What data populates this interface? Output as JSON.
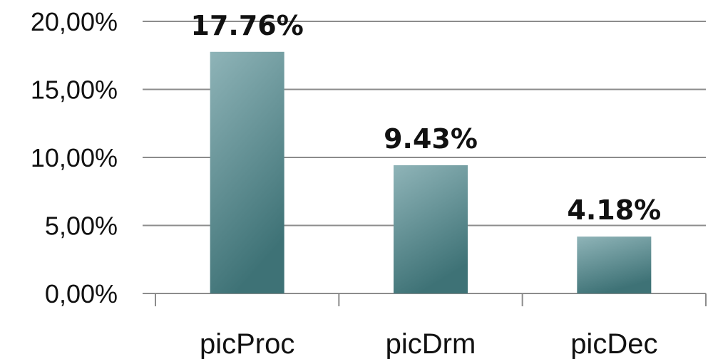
{
  "chart_data": {
    "type": "bar",
    "categories": [
      "picProc",
      "picDrm",
      "picDec"
    ],
    "values": [
      17.76,
      9.43,
      4.18
    ],
    "data_labels": [
      "17.76%",
      "9.43%",
      "4.18%"
    ],
    "y_ticks": [
      0,
      5,
      10,
      15,
      20
    ],
    "y_tick_labels": [
      "0,00%",
      "5,00%",
      "10,00%",
      "15,00%",
      "20,00%"
    ],
    "ylim": [
      0,
      20
    ],
    "grid": true,
    "legend": "none",
    "colors": {
      "bar_light": "#8fb4b8",
      "bar_dark": "#3e7276",
      "gridline": "#8c8c8c",
      "axis": "#8c8c8c",
      "text": "#111111"
    }
  }
}
